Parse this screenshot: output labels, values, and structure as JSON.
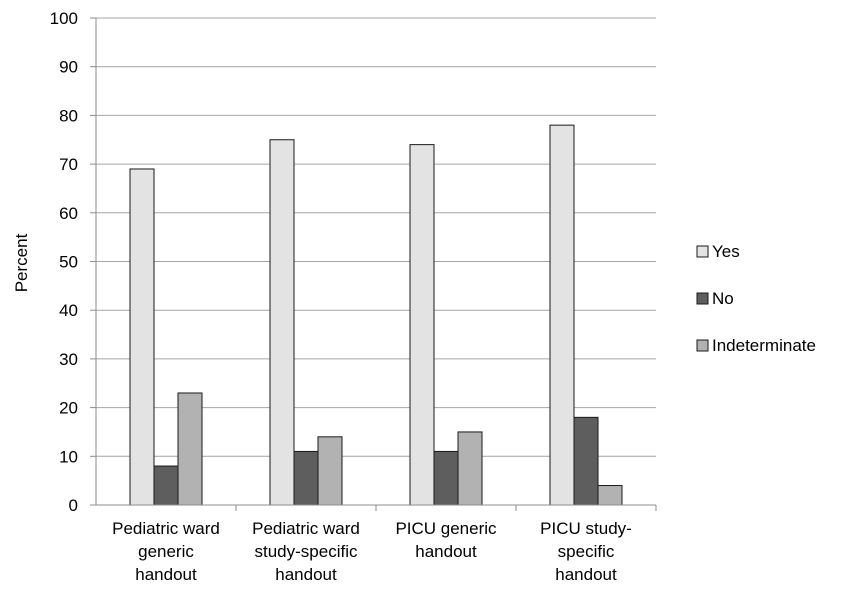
{
  "chart_data": {
    "type": "bar",
    "title": "",
    "xlabel": "",
    "ylabel": "Percent",
    "ylim": [
      0,
      100
    ],
    "yticks": [
      0,
      10,
      20,
      30,
      40,
      50,
      60,
      70,
      80,
      90,
      100
    ],
    "grid": true,
    "legend_position": "right",
    "categories": [
      [
        "Pediatric ward",
        "generic",
        "handout"
      ],
      [
        "Pediatric ward",
        "study-specific",
        "handout"
      ],
      [
        "PICU generic",
        "handout"
      ],
      [
        "PICU study-",
        "specific",
        "handout"
      ]
    ],
    "series": [
      {
        "name": "Yes",
        "color": "#e3e3e3",
        "values": [
          69,
          75,
          74,
          78
        ]
      },
      {
        "name": "No",
        "color": "#5e5e5e",
        "values": [
          8,
          11,
          11,
          18
        ]
      },
      {
        "name": "Indeterminate",
        "color": "#b2b2b2",
        "values": [
          23,
          14,
          15,
          4
        ]
      }
    ]
  }
}
